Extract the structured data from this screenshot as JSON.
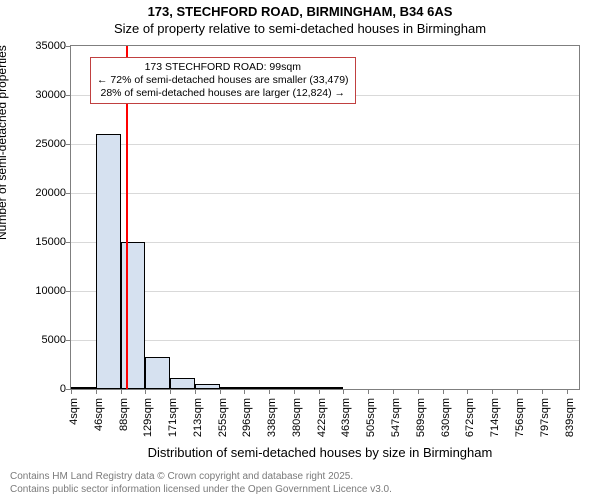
{
  "title": {
    "main": "173, STECHFORD ROAD, BIRMINGHAM, B34 6AS",
    "sub": "Size of property relative to semi-detached houses in Birmingham"
  },
  "ylabel": "Number of semi-detached properties",
  "xlabel": "Distribution of semi-detached houses by size in Birmingham",
  "chart": {
    "type": "histogram",
    "background_color": "#ffffff",
    "grid_color": "#d9d9d9",
    "axis_color": "#7f7f7f",
    "bar_fill": "#d6e1f0",
    "bar_stroke": "#000000",
    "marker_line_color": "#ff0000",
    "marker_x_value": 99,
    "yaxis": {
      "min": 0,
      "max": 35000,
      "step": 5000
    },
    "xaxis": {
      "min": 4,
      "max": 860
    },
    "xticks": [
      {
        "v": 4,
        "label": "4sqm"
      },
      {
        "v": 46,
        "label": "46sqm"
      },
      {
        "v": 88,
        "label": "88sqm"
      },
      {
        "v": 129,
        "label": "129sqm"
      },
      {
        "v": 171,
        "label": "171sqm"
      },
      {
        "v": 213,
        "label": "213sqm"
      },
      {
        "v": 255,
        "label": "255sqm"
      },
      {
        "v": 296,
        "label": "296sqm"
      },
      {
        "v": 338,
        "label": "338sqm"
      },
      {
        "v": 380,
        "label": "380sqm"
      },
      {
        "v": 422,
        "label": "422sqm"
      },
      {
        "v": 463,
        "label": "463sqm"
      },
      {
        "v": 505,
        "label": "505sqm"
      },
      {
        "v": 547,
        "label": "547sqm"
      },
      {
        "v": 589,
        "label": "589sqm"
      },
      {
        "v": 630,
        "label": "630sqm"
      },
      {
        "v": 672,
        "label": "672sqm"
      },
      {
        "v": 714,
        "label": "714sqm"
      },
      {
        "v": 756,
        "label": "756sqm"
      },
      {
        "v": 797,
        "label": "797sqm"
      },
      {
        "v": 839,
        "label": "839sqm"
      }
    ],
    "bars": [
      {
        "x0": 4,
        "x1": 46,
        "y": 100
      },
      {
        "x0": 46,
        "x1": 88,
        "y": 26000
      },
      {
        "x0": 88,
        "x1": 129,
        "y": 15000
      },
      {
        "x0": 129,
        "x1": 171,
        "y": 3300
      },
      {
        "x0": 171,
        "x1": 213,
        "y": 1100
      },
      {
        "x0": 213,
        "x1": 255,
        "y": 500
      },
      {
        "x0": 255,
        "x1": 296,
        "y": 250
      },
      {
        "x0": 296,
        "x1": 338,
        "y": 120
      },
      {
        "x0": 338,
        "x1": 380,
        "y": 80
      },
      {
        "x0": 380,
        "x1": 422,
        "y": 50
      },
      {
        "x0": 422,
        "x1": 463,
        "y": 30
      }
    ]
  },
  "annotation": {
    "line1": "173 STECHFORD ROAD: 99sqm",
    "line2": "← 72% of semi-detached houses are smaller (33,479)",
    "line3": "28% of semi-detached houses are larger (12,824) →",
    "border_color": "#c04040",
    "font_size": 10.5
  },
  "footer": {
    "line1": "Contains HM Land Registry data © Crown copyright and database right 2025.",
    "line2": "Contains public sector information licensed under the Open Government Licence v3.0.",
    "color": "#7a7a7a"
  }
}
